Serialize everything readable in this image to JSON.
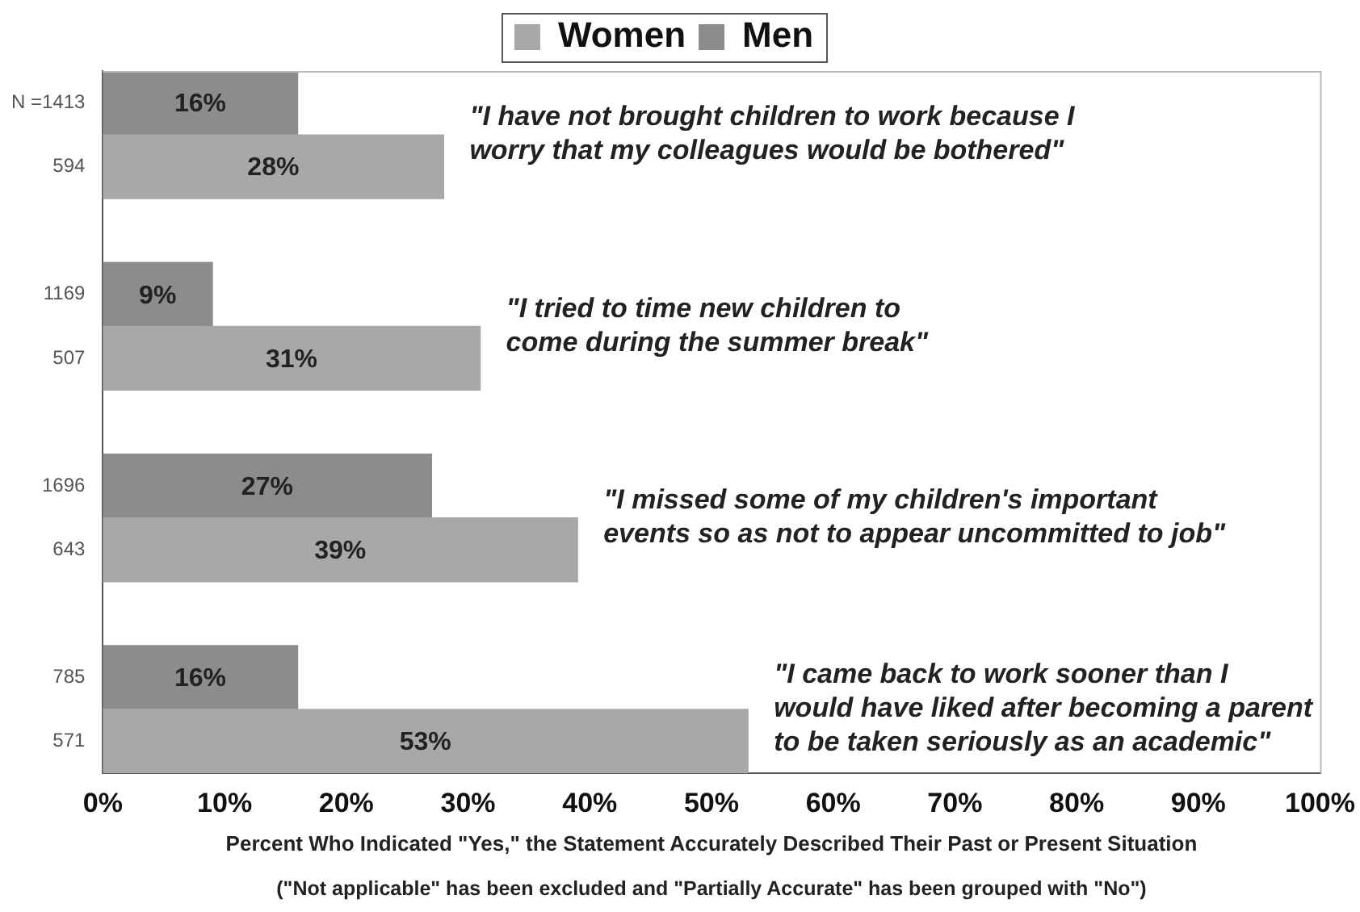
{
  "chart_data": {
    "type": "bar",
    "orientation": "horizontal",
    "categories": [
      "N =1413",
      "594",
      null,
      "1169",
      "507",
      null,
      "1696",
      "643",
      null,
      "785",
      "571"
    ],
    "series": [
      {
        "name": "Women",
        "color": "#a8a8a8",
        "values": [
          null,
          28,
          null,
          null,
          31,
          null,
          null,
          39,
          null,
          null,
          53
        ],
        "value_labels": [
          null,
          "28%",
          null,
          null,
          "31%",
          null,
          null,
          "39%",
          null,
          null,
          "53%"
        ]
      },
      {
        "name": "Men",
        "color": "#8c8c8c",
        "values": [
          16,
          null,
          null,
          9,
          null,
          null,
          27,
          null,
          null,
          16,
          null
        ],
        "value_labels": [
          "16%",
          null,
          null,
          "9%",
          null,
          null,
          "27%",
          null,
          null,
          "16%",
          null
        ]
      }
    ],
    "xlim": [
      0,
      100
    ],
    "xticks": [
      {
        "value": 0,
        "label": "0%"
      },
      {
        "value": 10,
        "label": "10%"
      },
      {
        "value": 20,
        "label": "20%"
      },
      {
        "value": 30,
        "label": "30%"
      },
      {
        "value": 40,
        "label": "40%"
      },
      {
        "value": 50,
        "label": "50%"
      },
      {
        "value": 60,
        "label": "60%"
      },
      {
        "value": 70,
        "label": "70%"
      },
      {
        "value": 80,
        "label": "80%"
      },
      {
        "value": 90,
        "label": "90%"
      },
      {
        "value": 100,
        "label": "100%"
      }
    ],
    "xlabel": "Percent Who Indicated \"Yes,\" the Statement Accurately Described Their Past or Present Situation",
    "annotations": [
      "\"I have not brought children to work because I\nworry that my colleagues would be bothered\"",
      "\"I tried to time new children to\ncome during the summer break\"",
      "\"I missed some of my children's important\nevents so as not to appear uncommitted to job\"",
      "\"I came back to work sooner than I\nwould have liked after becoming a parent\nto be taken seriously as an academic\"",
      "(\"Not applicable\" has been excluded and \"Partially Accurate\" has been grouped with \"No\")"
    ],
    "legend": "top",
    "grid": false
  }
}
